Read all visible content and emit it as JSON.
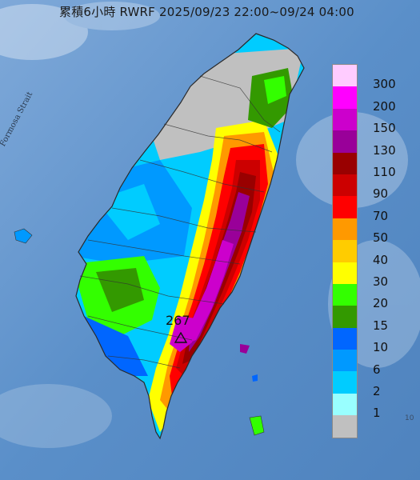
{
  "title": "累積6小時 RWRF 2025/09/23 22:00~09/24 04:00",
  "strait_label": "Formosa Strait",
  "max_value": "267",
  "ocean_marker": "10",
  "legend": {
    "labels": [
      "300",
      "200",
      "150",
      "130",
      "110",
      "90",
      "70",
      "50",
      "40",
      "30",
      "20",
      "15",
      "10",
      "6",
      "2",
      "1"
    ],
    "colors": [
      "#ffccff",
      "#ff00ff",
      "#cc00cc",
      "#990099",
      "#990000",
      "#cc0000",
      "#ff0000",
      "#ff9900",
      "#ffcc00",
      "#ffff00",
      "#33ff00",
      "#339900",
      "#0066ff",
      "#0099ff",
      "#00ccff",
      "#99ffff",
      "#c0c0c0"
    ]
  },
  "colors": {
    "sea": "#5a8fc9",
    "land_no_rain": "#c0c0c0"
  }
}
